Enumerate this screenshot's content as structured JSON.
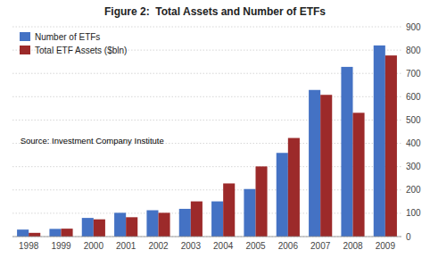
{
  "chart_data": {
    "type": "bar",
    "title": "Figure 2:  Total Assets and Number of ETFs",
    "categories": [
      "1998",
      "1999",
      "2000",
      "2001",
      "2002",
      "2003",
      "2004",
      "2005",
      "2006",
      "2007",
      "2008",
      "2009"
    ],
    "series": [
      {
        "name": "Number of ETFs",
        "color": "#4472C4",
        "values": [
          30,
          33,
          80,
          102,
          113,
          119,
          151,
          204,
          359,
          629,
          728,
          820
        ]
      },
      {
        "name": "Total ETF Assets ($bln)",
        "color": "#9C2A2A",
        "values": [
          16,
          34,
          74,
          83,
          102,
          151,
          228,
          301,
          423,
          608,
          531,
          777
        ]
      }
    ],
    "annotations": [
      "Source: Investment Company Institute"
    ],
    "ylim": [
      0,
      900
    ],
    "yticks": [
      0,
      100,
      200,
      300,
      400,
      500,
      600,
      700,
      800,
      900
    ],
    "grid": true,
    "legend": "upper left"
  }
}
